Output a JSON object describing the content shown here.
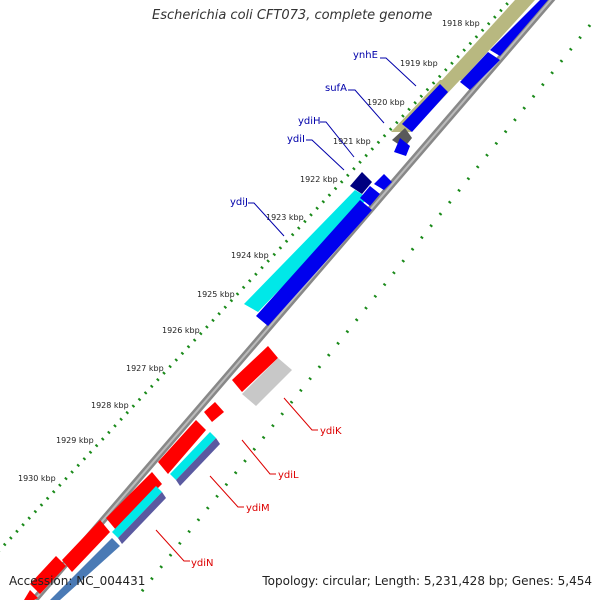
{
  "title": "Escherichia coli CFT073, complete genome",
  "footer": {
    "accession": "Accession: NC_004431",
    "summary": "Topology: circular; Length: 5,231,428 bp; Genes: 5,454"
  },
  "colors": {
    "backbone": "#888888",
    "forward_ticks": "#1a8a1a",
    "plus_label": "#0000aa",
    "minus_label": "#dd0000",
    "gene_blue": "#0000ee",
    "gene_red": "#ff0000",
    "gene_cyan": "#00e8e8",
    "gene_olive": "#b8b880",
    "gene_grey": "#c8c8c8",
    "gene_dark": "#5a5a5a",
    "gene_navy": "#000080",
    "gene_steel": "#4a7ab5",
    "gene_purple": "#5a5aa0"
  },
  "scale": {
    "unit_label_suffix": " kbp",
    "ticks": [
      "1918 kbp",
      "1919 kbp",
      "1920 kbp",
      "1921 kbp",
      "1922 kbp",
      "1923 kbp",
      "1924 kbp",
      "1925 kbp",
      "1926 kbp",
      "1927 kbp",
      "1928 kbp",
      "1929 kbp",
      "1930 kbp"
    ]
  },
  "genes_plus": [
    {
      "name": "ynhE"
    },
    {
      "name": "sufA"
    },
    {
      "name": "ydiH"
    },
    {
      "name": "ydiI"
    },
    {
      "name": "ydiJ"
    }
  ],
  "genes_minus": [
    {
      "name": "ydiK"
    },
    {
      "name": "ydiL"
    },
    {
      "name": "ydiM"
    },
    {
      "name": "ydiN"
    }
  ]
}
